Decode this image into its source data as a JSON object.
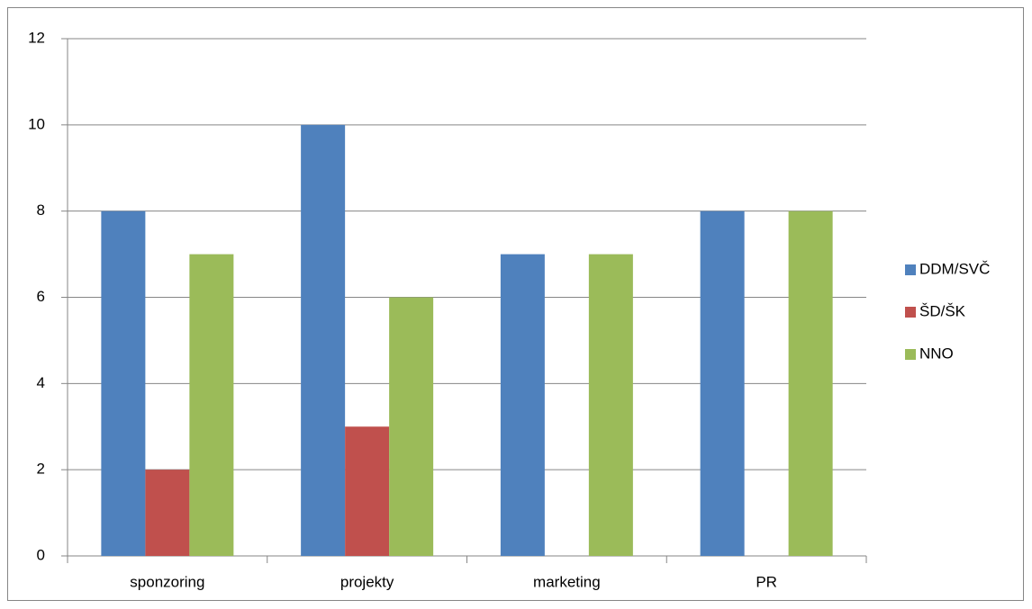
{
  "chart_data": {
    "type": "bar",
    "categories": [
      "sponzoring",
      "projekty",
      "marketing",
      "PR"
    ],
    "series": [
      {
        "name": "DDM/SVČ",
        "color": "#4f81bd",
        "values": [
          8,
          10,
          7,
          8
        ]
      },
      {
        "name": "ŠD/ŠK",
        "color": "#c0504d",
        "values": [
          2,
          3,
          0,
          0
        ]
      },
      {
        "name": "NNO",
        "color": "#9bbb59",
        "values": [
          7,
          6,
          7,
          8
        ]
      }
    ],
    "ylim": [
      0,
      12
    ],
    "yticks": [
      0,
      2,
      4,
      6,
      8,
      10,
      12
    ],
    "grid": true,
    "legend": "right"
  }
}
